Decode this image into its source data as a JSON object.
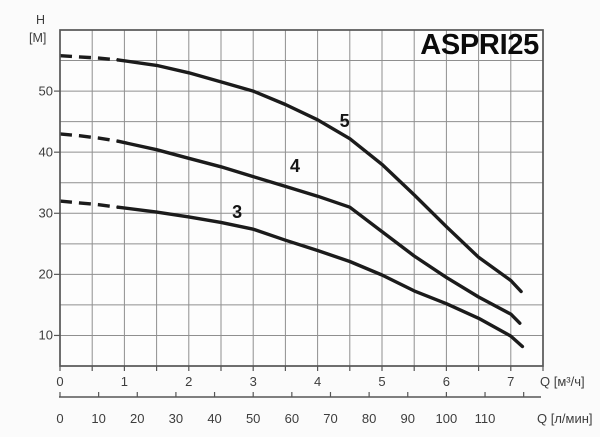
{
  "labels": {
    "y_name": "H",
    "y_unit": "[M]",
    "x_unit_m3h": "Q [м³/ч]",
    "x_unit_lmin": "Q [л/мин]"
  },
  "colors": {
    "curve": "#1b1b1b",
    "grid": "#8f8f8f",
    "border": "#565656",
    "axis": "#565656",
    "text": "#3d3d3d",
    "plot_fill": "#fdfdfd",
    "background": "#fbfbfb"
  },
  "chart_data": {
    "type": "line",
    "title": "ASPRI25",
    "ylabel": "H [M]",
    "xlabel_primary": "Q [м³/ч]",
    "xlabel_secondary": "Q [л/мин]",
    "xlim": [
      0,
      7.5
    ],
    "ylim": [
      5,
      60
    ],
    "grid": {
      "x_step": 0.5,
      "y_step": 5,
      "on": true
    },
    "x_ticks_m3h": [
      0,
      1,
      2,
      3,
      4,
      5,
      6,
      7
    ],
    "x_ticks_lmin": [
      0,
      10,
      20,
      30,
      40,
      50,
      60,
      70,
      80,
      90,
      100,
      110
    ],
    "x_ticks_lmin_unlabeled": [
      120
    ],
    "y_ticks": [
      10,
      20,
      30,
      40,
      50
    ],
    "lmin_per_m3h": 16.667,
    "series": [
      {
        "name": "5",
        "dash_until_x": 0.9,
        "label_at": [
          4.42,
          45.1
        ],
        "points": [
          [
            0,
            55.8
          ],
          [
            0.3,
            55.6
          ],
          [
            0.6,
            55.4
          ],
          [
            0.9,
            55.1
          ],
          [
            1.5,
            54.2
          ],
          [
            2,
            53
          ],
          [
            2.5,
            51.5
          ],
          [
            3,
            50
          ],
          [
            3.5,
            47.8
          ],
          [
            4,
            45.3
          ],
          [
            4.5,
            42.2
          ],
          [
            5,
            38
          ],
          [
            5.5,
            33
          ],
          [
            6,
            27.8
          ],
          [
            6.5,
            22.8
          ],
          [
            7,
            19
          ],
          [
            7.16,
            17.2
          ]
        ]
      },
      {
        "name": "4",
        "dash_until_x": 0.9,
        "label_at": [
          3.65,
          37.7
        ],
        "points": [
          [
            0,
            43
          ],
          [
            0.3,
            42.7
          ],
          [
            0.6,
            42.3
          ],
          [
            0.9,
            41.8
          ],
          [
            1.5,
            40.4
          ],
          [
            2,
            39
          ],
          [
            2.5,
            37.6
          ],
          [
            3,
            36
          ],
          [
            3.5,
            34.4
          ],
          [
            4,
            32.8
          ],
          [
            4.5,
            31
          ],
          [
            5,
            27
          ],
          [
            5.5,
            23
          ],
          [
            6,
            19.5
          ],
          [
            6.5,
            16.3
          ],
          [
            7,
            13.5
          ],
          [
            7.14,
            12
          ]
        ]
      },
      {
        "name": "3",
        "dash_until_x": 0.9,
        "label_at": [
          2.75,
          30.2
        ],
        "points": [
          [
            0,
            32
          ],
          [
            0.3,
            31.7
          ],
          [
            0.6,
            31.4
          ],
          [
            0.9,
            31
          ],
          [
            1.5,
            30.2
          ],
          [
            2,
            29.4
          ],
          [
            2.5,
            28.5
          ],
          [
            3,
            27.4
          ],
          [
            3.5,
            25.6
          ],
          [
            4,
            23.9
          ],
          [
            4.5,
            22.1
          ],
          [
            5,
            19.9
          ],
          [
            5.5,
            17.3
          ],
          [
            6,
            15.2
          ],
          [
            6.5,
            12.8
          ],
          [
            7,
            9.9
          ],
          [
            7.18,
            8.2
          ]
        ]
      }
    ]
  }
}
